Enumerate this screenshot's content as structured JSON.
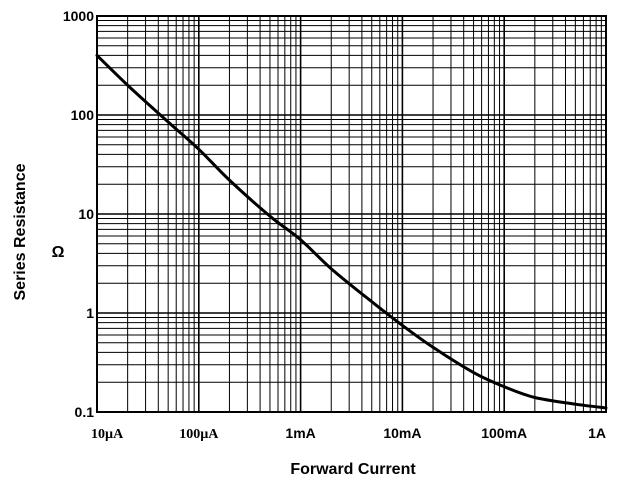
{
  "chart_data": {
    "type": "line",
    "title": "",
    "xlabel": "Forward Current",
    "ylabel": "Series Resistance",
    "ylabel_unit": "Ω",
    "x_scale": "log",
    "y_scale": "log",
    "xlim": [
      1e-05,
      1
    ],
    "ylim": [
      0.1,
      1000
    ],
    "grid": true,
    "x_tick_values": [
      1e-05,
      0.0001,
      0.001,
      0.01,
      0.1,
      1
    ],
    "x_tick_labels": [
      "10µA",
      "100µA",
      "1mA",
      "10mA",
      "100mA",
      "1A"
    ],
    "y_tick_values": [
      0.1,
      1,
      10,
      100,
      1000
    ],
    "y_tick_labels": [
      "0.1",
      "1",
      "10",
      "100",
      "1000"
    ],
    "series": [
      {
        "x": [
          1e-05,
          2e-05,
          5e-05,
          0.0001,
          0.0002,
          0.0005,
          0.001,
          0.002,
          0.005,
          0.01,
          0.02,
          0.05,
          0.1,
          0.2,
          0.5,
          1
        ],
        "values": [
          400,
          200,
          85,
          45,
          22,
          9.5,
          5.5,
          2.8,
          1.3,
          0.75,
          0.45,
          0.25,
          0.18,
          0.14,
          0.12,
          0.11
        ]
      }
    ],
    "colors": {
      "line": "#000000",
      "grid": "#000000",
      "background": "#ffffff"
    }
  }
}
